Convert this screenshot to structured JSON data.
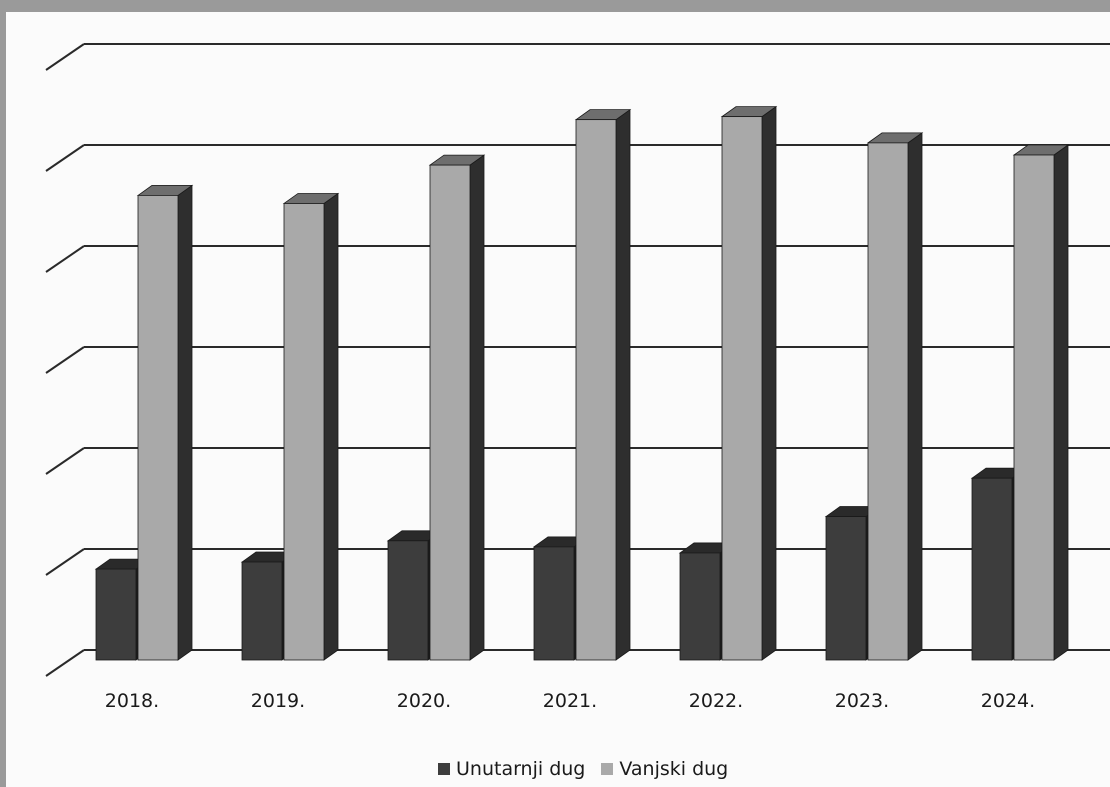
{
  "chart_data": {
    "type": "bar",
    "categories": [
      "2018.",
      "2019.",
      "2020.",
      "2021.",
      "2022.",
      "2023.",
      "2024."
    ],
    "series": [
      {
        "name": "Unutarnji dug",
        "values": [
          0.9,
          0.97,
          1.18,
          1.12,
          1.06,
          1.42,
          1.8
        ],
        "color": "#3d3d3d"
      },
      {
        "name": "Vanjski dug",
        "values": [
          4.6,
          4.52,
          4.9,
          5.35,
          5.38,
          5.12,
          5.0
        ],
        "color": "#a9a9a9"
      }
    ],
    "ylim": [
      0,
      6
    ],
    "grid": true,
    "three_d": true,
    "legend_position": "bottom"
  }
}
